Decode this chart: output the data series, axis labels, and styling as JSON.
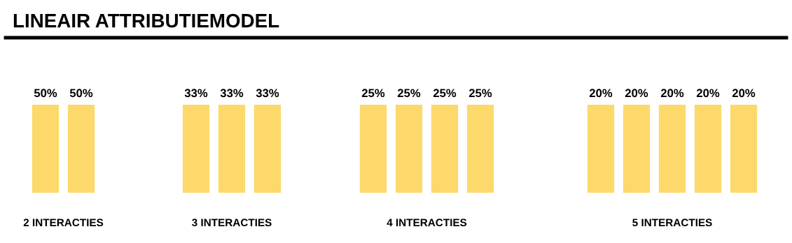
{
  "chart_data": [
    {
      "type": "other",
      "title": "LINEAIR ATTRIBUTIEMODEL",
      "xlabel": "2 INTERACTIES",
      "categories": [
        null,
        null
      ],
      "values": [
        50,
        50
      ],
      "value_labels": [
        "50%",
        "50%"
      ],
      "color": "#fcd96a"
    },
    {
      "type": "other",
      "xlabel": "3 INTERACTIES",
      "categories": [
        null,
        null,
        null
      ],
      "values": [
        33,
        33,
        33
      ],
      "value_labels": [
        "33%",
        "33%",
        "33%"
      ],
      "color": "#fcd96a"
    },
    {
      "type": "other",
      "xlabel": "4 INTERACTIES",
      "categories": [
        null,
        null,
        null,
        null
      ],
      "values": [
        25,
        25,
        25,
        25
      ],
      "value_labels": [
        "25%",
        "25%",
        "25%",
        "25%"
      ],
      "color": "#fcd96a"
    },
    {
      "type": "other",
      "xlabel": "5 INTERACTIES",
      "categories": [
        null,
        null,
        null,
        null,
        null
      ],
      "values": [
        20,
        20,
        20,
        20,
        20
      ],
      "value_labels": [
        "20%",
        "20%",
        "20%",
        "20%",
        "20%"
      ],
      "color": "#fcd96a"
    }
  ]
}
